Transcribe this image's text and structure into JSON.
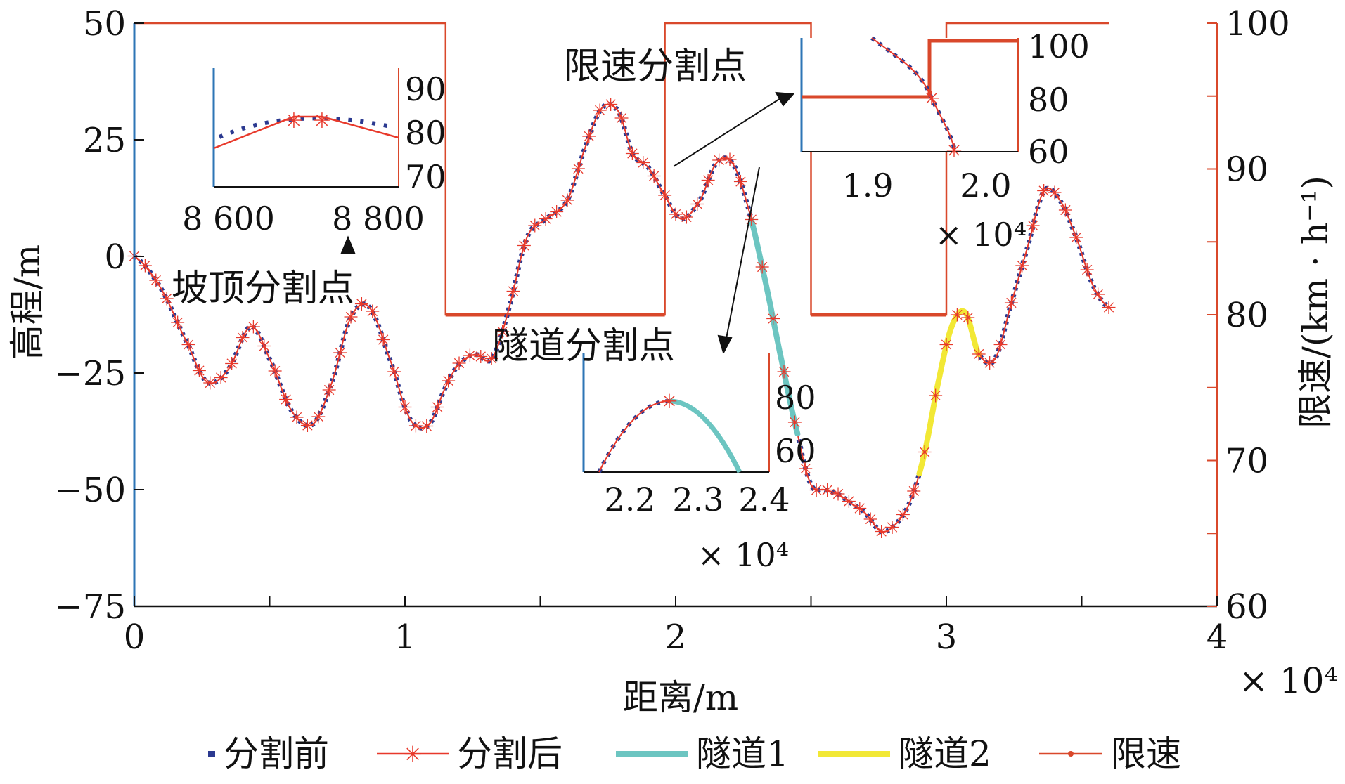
{
  "chart_data": {
    "type": "line",
    "xlabel": "距离/m",
    "ylabel_left": "高程/m",
    "ylabel_right": "限速/(km · h⁻¹)",
    "x_multiplier": "× 10⁴",
    "xlim": [
      0,
      40000
    ],
    "ylim_left": [
      -75,
      50
    ],
    "ylim_right": [
      60,
      100
    ],
    "x_ticks": [
      0,
      10000,
      20000,
      30000,
      40000
    ],
    "x_tick_labels": [
      "0",
      "1",
      "2",
      "3",
      "4"
    ],
    "y_left_ticks": [
      -75,
      -50,
      -25,
      0,
      25,
      50
    ],
    "y_left_tick_labels": [
      "−75",
      "−50",
      "−25",
      "0",
      "25",
      "50"
    ],
    "y_right_ticks": [
      60,
      70,
      80,
      90,
      100
    ],
    "y_right_tick_labels": [
      "60",
      "70",
      "80",
      "90",
      "100"
    ],
    "grid": false,
    "legend_position": "bottom",
    "colors": {
      "before": "#2b3990",
      "after": "#e8392b",
      "tunnel1": "#6cc5c1",
      "tunnel2": "#f2e835",
      "speed": "#d9482b",
      "axis_left": "#2e75b6",
      "axis_right": "#d9482b"
    },
    "elevation_profile": {
      "x": [
        0,
        1000,
        2000,
        2700,
        3500,
        4300,
        5000,
        5800,
        6600,
        7300,
        8000,
        8700,
        9500,
        10200,
        10900,
        11500,
        12000,
        12600,
        13200,
        13800,
        14500,
        15200,
        16000,
        16700,
        17300,
        17900,
        18400,
        19000,
        19600,
        20200,
        20900,
        21500,
        22100,
        22700,
        23300,
        23900,
        24500,
        25000,
        25500,
        26000,
        26500,
        27000,
        27600,
        28200,
        28700,
        29200,
        29700,
        30200,
        30700,
        31200,
        31800,
        32400,
        33000,
        33600,
        34200,
        34800,
        35400,
        36000
      ],
      "y": [
        0,
        -7,
        -19,
        -27,
        -24,
        -15,
        -22,
        -33,
        -36,
        -27,
        -13,
        -11,
        -23,
        -35,
        -36,
        -28,
        -23,
        -21,
        -22,
        -12,
        4,
        8,
        12,
        24,
        32,
        31,
        22,
        19,
        13,
        8,
        12,
        20,
        20,
        10,
        -5,
        -22,
        -38,
        -49,
        -50,
        -51,
        -53,
        -55,
        -59,
        -57,
        -52,
        -42,
        -27,
        -15,
        -12,
        -21,
        -22,
        -10,
        2,
        14,
        12,
        4,
        -6,
        -11
      ]
    },
    "series": [
      {
        "name": "分割前",
        "style": "dotted",
        "x_range": [
          0,
          36000
        ]
      },
      {
        "name": "分割后",
        "style": "line-with-star-markers",
        "x_range": [
          0,
          36000
        ]
      },
      {
        "name": "隧道1",
        "style": "thick-line",
        "x_range": [
          22800,
          24500
        ]
      },
      {
        "name": "隧道2",
        "style": "thick-line",
        "x_range": [
          29000,
          31200
        ]
      },
      {
        "name": "限速",
        "style": "step",
        "x": [
          0,
          11500,
          11500,
          19600,
          19600,
          25000,
          25000,
          30000,
          30000,
          36000
        ],
        "y": [
          100,
          100,
          80,
          80,
          100,
          100,
          80,
          80,
          100,
          100
        ]
      }
    ],
    "annotations": [
      {
        "text": "坡顶分割点"
      },
      {
        "text": "限速分割点"
      },
      {
        "text": "隧道分割点"
      }
    ],
    "insets": [
      {
        "name": "summit",
        "x_tick_labels": [
          "8 600",
          "8 800"
        ],
        "y_tick_labels": [
          "90",
          "80",
          "70"
        ]
      },
      {
        "name": "speed",
        "x_tick_labels": [
          "1.9",
          "2.0"
        ],
        "y_tick_labels": [
          "100",
          "80",
          "60"
        ],
        "x_multiplier": "× 10⁴"
      },
      {
        "name": "tunnel",
        "x_tick_labels": [
          "2.2",
          "2.3",
          "2.4"
        ],
        "y_tick_labels": [
          "80",
          "60"
        ],
        "x_multiplier": "× 10⁴"
      }
    ]
  }
}
